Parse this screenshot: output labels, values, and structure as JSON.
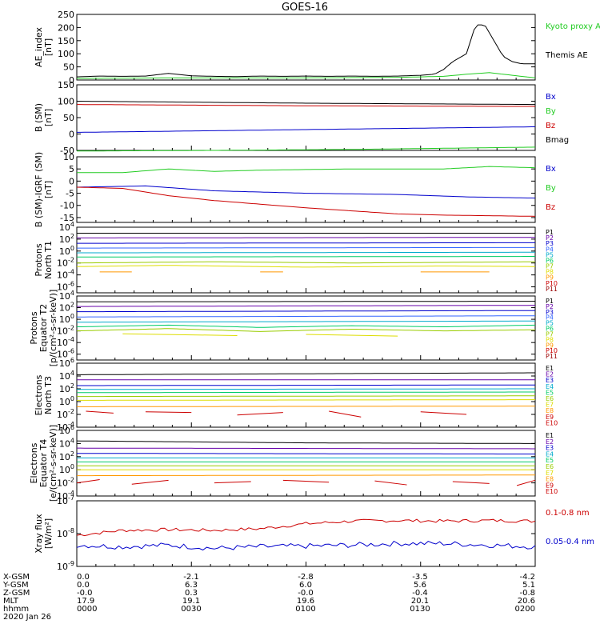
{
  "title": "GOES-16",
  "chart_data": [
    {
      "id": "ae",
      "type": "line",
      "ylabel": [
        "AE_index",
        "[nT]"
      ],
      "ylim": [
        0,
        250
      ],
      "yticks": [
        0,
        50,
        100,
        150,
        200,
        250
      ],
      "yscale": "linear",
      "series": [
        {
          "name": "Themis AE",
          "color": "#000000",
          "x": [
            0,
            0.05,
            0.1,
            0.15,
            0.2,
            0.25,
            0.3,
            0.35,
            0.4,
            0.45,
            0.5,
            0.55,
            0.6,
            0.65,
            0.7,
            0.75,
            0.78,
            0.8,
            0.82,
            0.85,
            0.87,
            0.89,
            0.91,
            0.93,
            0.95,
            0.97,
            1.0
          ],
          "y": [
            12,
            15,
            14,
            15,
            25,
            16,
            14,
            13,
            15,
            14,
            15,
            14,
            15,
            14,
            15,
            18,
            22,
            40,
            70,
            100,
            210,
            210,
            150,
            90,
            70,
            62,
            62
          ]
        },
        {
          "name": "Kyoto proxy AE",
          "color": "#22cc22",
          "x": [
            0,
            0.1,
            0.2,
            0.3,
            0.4,
            0.5,
            0.6,
            0.7,
            0.8,
            0.85,
            0.9,
            0.95,
            1.0
          ],
          "y": [
            6,
            7,
            8,
            8,
            8,
            8,
            9,
            10,
            14,
            22,
            28,
            18,
            8
          ]
        }
      ],
      "legend": [
        "Kyoto proxy AE",
        "Themis AE"
      ]
    },
    {
      "id": "bsm",
      "type": "line",
      "ylabel": [
        "B (SM)",
        "[nT]"
      ],
      "ylim": [
        -50,
        150
      ],
      "yticks": [
        -50,
        0,
        50,
        100,
        150
      ],
      "yscale": "linear",
      "series": [
        {
          "name": "Bx",
          "color": "#0000cc",
          "x": [
            0,
            1
          ],
          "y": [
            5,
            22
          ]
        },
        {
          "name": "By",
          "color": "#22cc22",
          "x": [
            0,
            0.3,
            0.6,
            1
          ],
          "y": [
            -52,
            -50,
            -47,
            -40
          ]
        },
        {
          "name": "Bz",
          "color": "#cc0000",
          "x": [
            0,
            0.5,
            1
          ],
          "y": [
            90,
            86,
            84
          ]
        },
        {
          "name": "Bmag",
          "color": "#000000",
          "x": [
            0,
            0.5,
            1
          ],
          "y": [
            100,
            94,
            90
          ]
        }
      ],
      "legend": [
        "Bx",
        "By",
        "Bz",
        "Bmag"
      ]
    },
    {
      "id": "bigrf",
      "type": "line",
      "ylabel": [
        "B (SM)-IGRF (SM)",
        "[nT]"
      ],
      "ylim": [
        -17,
        10
      ],
      "yticks": [
        -15,
        -10,
        -5,
        0,
        5,
        10
      ],
      "yscale": "linear",
      "series": [
        {
          "name": "Bx",
          "color": "#0000cc",
          "x": [
            0,
            0.15,
            0.3,
            0.5,
            0.7,
            0.85,
            1
          ],
          "y": [
            -2.5,
            -2,
            -4,
            -5,
            -5.5,
            -6.5,
            -7
          ]
        },
        {
          "name": "By",
          "color": "#22cc22",
          "x": [
            0,
            0.1,
            0.2,
            0.3,
            0.4,
            0.6,
            0.8,
            0.9,
            1
          ],
          "y": [
            3.5,
            3.5,
            5,
            4,
            4.5,
            5,
            5,
            6,
            5.5
          ]
        },
        {
          "name": "Bz",
          "color": "#cc0000",
          "x": [
            0,
            0.1,
            0.2,
            0.3,
            0.5,
            0.7,
            0.8,
            1
          ],
          "y": [
            -2.5,
            -3,
            -6,
            -8,
            -11,
            -13.5,
            -14,
            -14.5
          ]
        }
      ],
      "legend": [
        "Bx",
        "By",
        "Bz"
      ]
    },
    {
      "id": "pnorth",
      "type": "line",
      "ylabel": [
        "Protons",
        "North T1"
      ],
      "ylim": [
        -7,
        4
      ],
      "yticks": [
        -6,
        -4,
        -2,
        0,
        2,
        4
      ],
      "yscale": "log",
      "series": [
        {
          "name": "P1",
          "color": "#000000",
          "x": [
            0,
            1
          ],
          "y": [
            3.0,
            3.0
          ]
        },
        {
          "name": "P2",
          "color": "#6600aa",
          "x": [
            0,
            1
          ],
          "y": [
            2.2,
            2.3
          ]
        },
        {
          "name": "P3",
          "color": "#0000cc",
          "x": [
            0,
            1
          ],
          "y": [
            1.3,
            1.4
          ]
        },
        {
          "name": "P4",
          "color": "#3366ff",
          "x": [
            0,
            1
          ],
          "y": [
            0.5,
            0.6
          ]
        },
        {
          "name": "P5",
          "color": "#00aacc",
          "x": [
            0,
            1
          ],
          "y": [
            -0.3,
            -0.2
          ]
        },
        {
          "name": "P6",
          "color": "#00cc66",
          "x": [
            0,
            1
          ],
          "y": [
            -1.0,
            -0.9
          ]
        },
        {
          "name": "P7",
          "color": "#99cc00",
          "x": [
            0,
            0.3,
            0.6,
            1
          ],
          "y": [
            -2.0,
            -1.8,
            -2.0,
            -1.8
          ]
        },
        {
          "name": "P8",
          "color": "#dddd00",
          "x": [
            0,
            0.2,
            0.5,
            0.8,
            1
          ],
          "y": [
            -2.6,
            -2.4,
            -2.7,
            -2.5,
            -2.6
          ]
        },
        {
          "name": "P9",
          "color": "#ff9900",
          "x": [
            0.05,
            0.12,
            0.4,
            0.45,
            0.75,
            0.9
          ],
          "y": [
            -3.5,
            -3.5,
            -3.5,
            -3.5,
            -3.5,
            -3.5
          ]
        }
      ],
      "legend": [
        "P1",
        "P2",
        "P3",
        "P4",
        "P5",
        "P6",
        "P7",
        "P8",
        "P9",
        "P10",
        "P11"
      ]
    },
    {
      "id": "pequator",
      "type": "line",
      "ylabel": [
        "Protons",
        "Equator T2",
        "[p/(cm²-s-sr-keV)]"
      ],
      "ylim": [
        -7,
        4
      ],
      "yticks": [
        -6,
        -4,
        -2,
        0,
        2,
        4
      ],
      "yscale": "log",
      "series": [
        {
          "name": "P1",
          "color": "#000000",
          "x": [
            0,
            1
          ],
          "y": [
            3.0,
            3.1
          ]
        },
        {
          "name": "P2",
          "color": "#6600aa",
          "x": [
            0,
            1
          ],
          "y": [
            2.2,
            2.4
          ]
        },
        {
          "name": "P3",
          "color": "#0000cc",
          "x": [
            0,
            1
          ],
          "y": [
            1.3,
            1.5
          ]
        },
        {
          "name": "P4",
          "color": "#3366ff",
          "x": [
            0,
            1
          ],
          "y": [
            0.4,
            0.6
          ]
        },
        {
          "name": "P5",
          "color": "#00aacc",
          "x": [
            0,
            1
          ],
          "y": [
            -0.5,
            -0.3
          ]
        },
        {
          "name": "P6",
          "color": "#00cc66",
          "x": [
            0,
            0.2,
            0.4,
            0.6,
            0.8,
            1
          ],
          "y": [
            -1.3,
            -1.0,
            -1.4,
            -1.1,
            -1.3,
            -1.0
          ]
        },
        {
          "name": "P7",
          "color": "#99cc00",
          "x": [
            0,
            0.2,
            0.4,
            0.6,
            0.8,
            1
          ],
          "y": [
            -2.0,
            -1.6,
            -2.1,
            -1.7,
            -2.0,
            -1.8
          ]
        },
        {
          "name": "P8",
          "color": "#dddd00",
          "x": [
            0.1,
            0.35,
            0.5,
            0.7,
            0.9
          ],
          "y": [
            -2.5,
            -2.8,
            -2.6,
            -2.9,
            -2.6
          ]
        }
      ],
      "legend": [
        "P1",
        "P2",
        "P3",
        "P4",
        "P5",
        "P6",
        "P7",
        "P8",
        "P9",
        "P10",
        "P11"
      ]
    },
    {
      "id": "enorth",
      "type": "line",
      "ylabel": [
        "Electrons",
        "North T3"
      ],
      "ylim": [
        -4,
        6
      ],
      "yticks": [
        -4,
        -2,
        0,
        2,
        4,
        6
      ],
      "yscale": "log",
      "series": [
        {
          "name": "E1",
          "color": "#000000",
          "x": [
            0,
            1
          ],
          "y": [
            4.2,
            4.5
          ]
        },
        {
          "name": "E2",
          "color": "#6600aa",
          "x": [
            0,
            1
          ],
          "y": [
            3.4,
            3.4
          ]
        },
        {
          "name": "E3",
          "color": "#0000cc",
          "x": [
            0,
            1
          ],
          "y": [
            2.5,
            2.6
          ]
        },
        {
          "name": "E4",
          "color": "#00aacc",
          "x": [
            0,
            1
          ],
          "y": [
            1.9,
            2.0
          ]
        },
        {
          "name": "E5",
          "color": "#00cc66",
          "x": [
            0,
            1
          ],
          "y": [
            1.4,
            1.5
          ]
        },
        {
          "name": "E6",
          "color": "#99cc00",
          "x": [
            0,
            1
          ],
          "y": [
            0.8,
            0.9
          ]
        },
        {
          "name": "E7",
          "color": "#dddd00",
          "x": [
            0,
            1
          ],
          "y": [
            0.2,
            0.3
          ]
        },
        {
          "name": "E8",
          "color": "#ff9900",
          "x": [
            0,
            1
          ],
          "y": [
            -0.8,
            -0.7
          ]
        },
        {
          "name": "E9",
          "color": "#cc0000",
          "x": [
            0.02,
            0.08,
            0.15,
            0.25,
            0.35,
            0.45,
            0.55,
            0.62,
            0.75,
            0.85,
            0.95
          ],
          "y": [
            -1.5,
            -1.8,
            -1.6,
            -1.7,
            -2.1,
            -1.7,
            -1.5,
            -2.4,
            -1.6,
            -2.0,
            -1.7
          ]
        }
      ],
      "legend": [
        "E1",
        "E2",
        "E3",
        "E4",
        "E5",
        "E6",
        "E7",
        "E8",
        "E9",
        "E10"
      ]
    },
    {
      "id": "eequator",
      "type": "line",
      "ylabel": [
        "Electrons",
        "Equator T4",
        "[e/(cm²-s-sr-keV)]"
      ],
      "ylim": [
        -4,
        6
      ],
      "yticks": [
        -4,
        -2,
        0,
        2,
        4,
        6
      ],
      "yscale": "log",
      "series": [
        {
          "name": "E1",
          "color": "#000000",
          "x": [
            0,
            0.5,
            1
          ],
          "y": [
            4.4,
            4.1,
            4.0
          ]
        },
        {
          "name": "E2",
          "color": "#6600aa",
          "x": [
            0,
            1
          ],
          "y": [
            3.3,
            3.2
          ]
        },
        {
          "name": "E3",
          "color": "#0000cc",
          "x": [
            0,
            1
          ],
          "y": [
            2.5,
            2.4
          ]
        },
        {
          "name": "E4",
          "color": "#00aacc",
          "x": [
            0,
            1
          ],
          "y": [
            1.8,
            1.8
          ]
        },
        {
          "name": "E5",
          "color": "#00cc66",
          "x": [
            0,
            1
          ],
          "y": [
            1.2,
            1.2
          ]
        },
        {
          "name": "E6",
          "color": "#99cc00",
          "x": [
            0,
            1
          ],
          "y": [
            0.6,
            0.6
          ]
        },
        {
          "name": "E7",
          "color": "#dddd00",
          "x": [
            0,
            1
          ],
          "y": [
            0.0,
            0.0
          ]
        },
        {
          "name": "E8",
          "color": "#ff9900",
          "x": [
            0,
            1
          ],
          "y": [
            -0.9,
            -0.8
          ]
        },
        {
          "name": "E9",
          "color": "#cc0000",
          "x": [
            0,
            0.05,
            0.12,
            0.2,
            0.3,
            0.38,
            0.45,
            0.55,
            0.65,
            0.72,
            0.82,
            0.9,
            0.96,
            1.0
          ],
          "y": [
            -2.0,
            -1.5,
            -2.2,
            -1.6,
            -2.0,
            -1.8,
            -1.6,
            -1.9,
            -1.7,
            -2.3,
            -1.8,
            -2.1,
            -2.4,
            -1.6
          ]
        }
      ],
      "legend": [
        "E1",
        "E2",
        "E3",
        "E4",
        "E5",
        "E6",
        "E7",
        "E8",
        "E9",
        "E10"
      ]
    },
    {
      "id": "xray",
      "type": "line",
      "ylabel": [
        "Xray flux",
        "[W/m²]"
      ],
      "ylim": [
        -9,
        -7
      ],
      "yticks": [
        -9,
        -8,
        -7
      ],
      "yscale": "log",
      "series": [
        {
          "name": "0.1-0.8 nm",
          "color": "#cc0000",
          "noise": 0.05,
          "x": [
            0,
            0.1,
            0.2,
            0.3,
            0.4,
            0.5,
            0.6,
            0.7,
            0.8,
            0.9,
            1
          ],
          "y": [
            -8.05,
            -7.9,
            -7.88,
            -7.9,
            -7.85,
            -7.7,
            -7.62,
            -7.6,
            -7.62,
            -7.6,
            -7.62
          ]
        },
        {
          "name": "0.05-0.4 nm",
          "color": "#0000cc",
          "noise": 0.08,
          "x": [
            0,
            0.1,
            0.2,
            0.3,
            0.4,
            0.5,
            0.6,
            0.7,
            0.8,
            0.9,
            1
          ],
          "y": [
            -8.35,
            -8.4,
            -8.35,
            -8.45,
            -8.4,
            -8.38,
            -8.35,
            -8.3,
            -8.3,
            -8.35,
            -8.4
          ]
        }
      ],
      "legend": [
        "0.1-0.8 nm",
        "0.05-0.4 nm"
      ]
    }
  ],
  "xaxis": {
    "rows": [
      {
        "label": "X-GSM",
        "values": [
          "0.0",
          "-2.1",
          "-2.8",
          "-3.5",
          "-4.2"
        ]
      },
      {
        "label": "Y-GSM",
        "values": [
          "0.0",
          "6.3",
          "6.0",
          "5.6",
          "5.1"
        ]
      },
      {
        "label": "Z-GSM",
        "values": [
          "-0.0",
          "0.3",
          "-0.0",
          "-0.4",
          "-0.8"
        ]
      },
      {
        "label": "MLT",
        "values": [
          "17.9",
          "19.1",
          "19.6",
          "20.1",
          "20.6"
        ]
      },
      {
        "label": "hhmm",
        "values": [
          "0000",
          "0030",
          "0100",
          "0130",
          "0200"
        ]
      }
    ],
    "date": "2020 Jan 26"
  }
}
